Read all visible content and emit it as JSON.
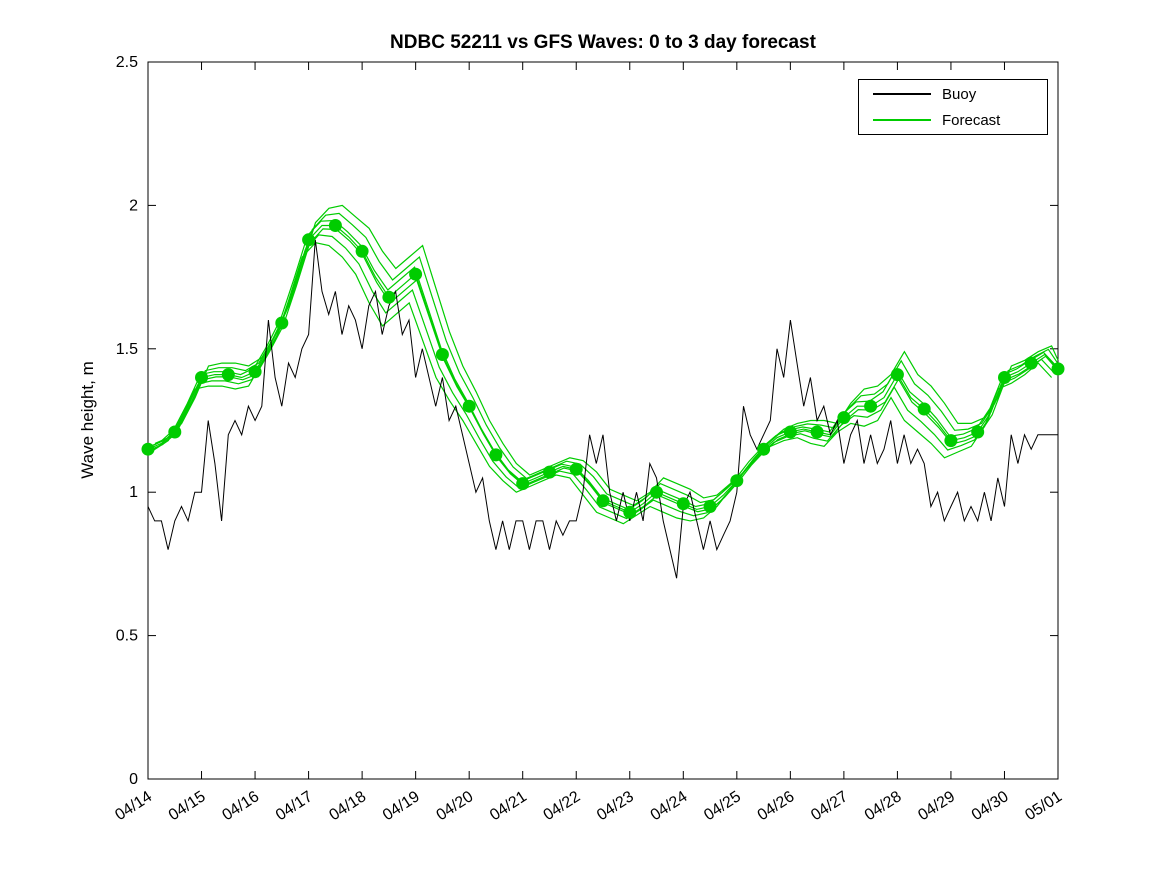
{
  "title": "NDBC 52211 vs GFS Waves: 0 to 3 day forecast",
  "axes": {
    "ylabel": "Wave height, m",
    "ylim": [
      0,
      2.5
    ],
    "yticks": [
      0,
      0.5,
      1,
      1.5,
      2,
      2.5
    ],
    "ytick_labels": [
      "0",
      "0.5",
      "1",
      "1.5",
      "2",
      "2.5"
    ],
    "xlim_days": [
      0,
      17
    ],
    "xtick_labels": [
      "04/14",
      "04/15",
      "04/16",
      "04/17",
      "04/18",
      "04/19",
      "04/20",
      "04/21",
      "04/22",
      "04/23",
      "04/24",
      "04/25",
      "04/26",
      "04/27",
      "04/28",
      "04/29",
      "04/30",
      "05/01"
    ],
    "xtick_rotation_deg": -33
  },
  "legend": {
    "entries": [
      {
        "label": "Buoy",
        "color": "#000000",
        "series": "buoy"
      },
      {
        "label": "Forecast",
        "color": "#00cc00",
        "series": "forecast"
      }
    ],
    "position": "top-right"
  },
  "colors": {
    "buoy": "#000000",
    "forecast": "#00cc00",
    "axis": "#000000",
    "background": "#ffffff"
  },
  "chart_data": {
    "type": "line",
    "title": "NDBC 52211 vs GFS Waves: 0 to 3 day forecast",
    "xlabel": "",
    "ylabel": "Wave height, m",
    "x_start_date": "04/14",
    "x_end_date": "05/01",
    "grid": false,
    "buoy": {
      "name": "Buoy",
      "dt_days": 0.125,
      "values": [
        0.95,
        0.9,
        0.9,
        0.8,
        0.9,
        0.95,
        0.9,
        1.0,
        1.0,
        1.25,
        1.1,
        0.9,
        1.2,
        1.25,
        1.2,
        1.3,
        1.25,
        1.3,
        1.6,
        1.4,
        1.3,
        1.45,
        1.4,
        1.5,
        1.55,
        1.88,
        1.7,
        1.62,
        1.7,
        1.55,
        1.65,
        1.6,
        1.5,
        1.65,
        1.7,
        1.55,
        1.65,
        1.7,
        1.55,
        1.6,
        1.4,
        1.5,
        1.4,
        1.3,
        1.4,
        1.25,
        1.3,
        1.2,
        1.1,
        1.0,
        1.05,
        0.9,
        0.8,
        0.9,
        0.8,
        0.9,
        0.9,
        0.8,
        0.9,
        0.9,
        0.8,
        0.9,
        0.85,
        0.9,
        0.9,
        1.0,
        1.2,
        1.1,
        1.2,
        1.0,
        0.9,
        1.0,
        0.9,
        1.0,
        0.9,
        1.1,
        1.05,
        0.9,
        0.8,
        0.7,
        0.95,
        1.0,
        0.9,
        0.8,
        0.9,
        0.8,
        0.85,
        0.9,
        1.0,
        1.3,
        1.2,
        1.15,
        1.2,
        1.25,
        1.5,
        1.4,
        1.6,
        1.45,
        1.3,
        1.4,
        1.25,
        1.3,
        1.2,
        1.25,
        1.1,
        1.2,
        1.25,
        1.1,
        1.2,
        1.1,
        1.15,
        1.25,
        1.1,
        1.2,
        1.1,
        1.15,
        1.1,
        0.95,
        1.0,
        0.9,
        0.95,
        1.0,
        0.9,
        0.95,
        0.9,
        1.0,
        0.9,
        1.05,
        0.95,
        1.2,
        1.1,
        1.2,
        1.15,
        1.2,
        1.2,
        1.2,
        1.2
      ]
    },
    "forecast_mean": {
      "name": "Forecast",
      "dt_days": 0.25,
      "values": [
        1.15,
        1.17,
        1.21,
        1.3,
        1.4,
        1.41,
        1.41,
        1.4,
        1.42,
        1.5,
        1.59,
        1.73,
        1.88,
        1.93,
        1.93,
        1.89,
        1.84,
        1.75,
        1.68,
        1.72,
        1.76,
        1.62,
        1.48,
        1.38,
        1.3,
        1.21,
        1.13,
        1.07,
        1.03,
        1.05,
        1.07,
        1.09,
        1.08,
        1.03,
        0.97,
        0.95,
        0.93,
        0.96,
        1.0,
        0.98,
        0.96,
        0.94,
        0.95,
        0.99,
        1.04,
        1.1,
        1.15,
        1.19,
        1.21,
        1.22,
        1.21,
        1.2,
        1.26,
        1.3,
        1.3,
        1.33,
        1.41,
        1.33,
        1.29,
        1.24,
        1.18,
        1.19,
        1.21,
        1.28,
        1.4,
        1.42,
        1.45,
        1.48,
        1.43
      ]
    },
    "forecast_spread": [
      0.02,
      0.02,
      0.03,
      0.03,
      0.04,
      0.04,
      0.04,
      0.04,
      0.05,
      0.05,
      0.06,
      0.06,
      0.06,
      0.06,
      0.07,
      0.07,
      0.08,
      0.09,
      0.1,
      0.1,
      0.1,
      0.09,
      0.08,
      0.06,
      0.05,
      0.04,
      0.04,
      0.03,
      0.03,
      0.03,
      0.03,
      0.03,
      0.03,
      0.04,
      0.04,
      0.04,
      0.04,
      0.04,
      0.05,
      0.05,
      0.05,
      0.04,
      0.04,
      0.04,
      0.03,
      0.03,
      0.03,
      0.03,
      0.03,
      0.03,
      0.04,
      0.04,
      0.05,
      0.06,
      0.07,
      0.08,
      0.08,
      0.08,
      0.08,
      0.07,
      0.06,
      0.05,
      0.05,
      0.05,
      0.04,
      0.04,
      0.04,
      0.03,
      0.03
    ],
    "ensemble_multipliers": [
      -1,
      -0.55,
      -0.2,
      0,
      0.25,
      0.6,
      1
    ],
    "ensemble_xshift_days": [
      -0.12,
      -0.06,
      0.02,
      0,
      -0.02,
      0.07,
      0.13
    ],
    "marker_interval_days": 0.5,
    "marker_radius_px": 6.5
  }
}
